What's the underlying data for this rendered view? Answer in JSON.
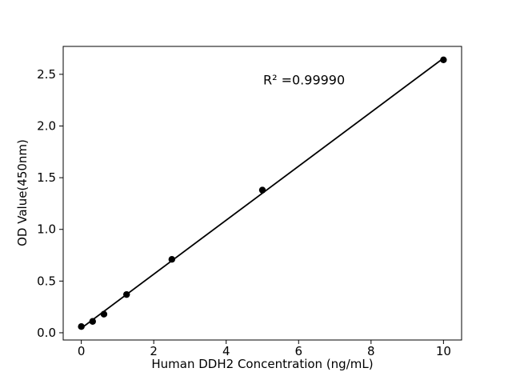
{
  "figure": {
    "background": "#ffffff",
    "foreground": "#000000"
  },
  "chart_data": {
    "type": "scatter",
    "title": "",
    "xlabel": "Human DDH2 Concentration (ng/mL)",
    "ylabel": "OD Value(450nm)",
    "x": [
      0,
      0.3125,
      0.625,
      1.25,
      2.5,
      5,
      10
    ],
    "y": [
      0.06,
      0.11,
      0.18,
      0.37,
      0.71,
      1.38,
      2.64
    ],
    "xlim": [
      -0.5,
      10.5
    ],
    "ylim": [
      -0.07,
      2.77
    ],
    "xticks": [
      0,
      2,
      4,
      6,
      8,
      10
    ],
    "xtick_labels": [
      "0",
      "2",
      "4",
      "6",
      "8",
      "10"
    ],
    "yticks": [
      0.0,
      0.5,
      1.0,
      1.5,
      2.0,
      2.5
    ],
    "ytick_labels": [
      "0.0",
      "0.5",
      "1.0",
      "1.5",
      "2.0",
      "2.5"
    ],
    "grid": false,
    "legend": null,
    "marker_color": "#000000",
    "line_color": "#000000",
    "trendline": {
      "slope": 0.2612,
      "intercept": 0.044,
      "x_start": 0,
      "x_end": 10
    },
    "annotation": {
      "text": "R² =0.99990",
      "x": 6.15,
      "y": 2.44
    }
  }
}
